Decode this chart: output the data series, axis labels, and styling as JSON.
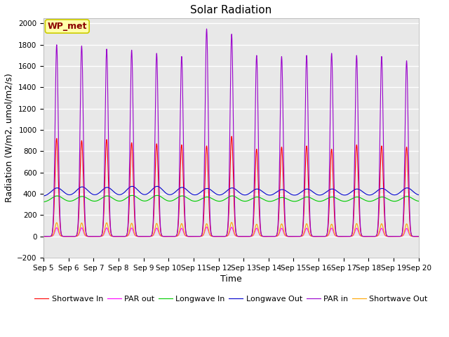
{
  "title": "Solar Radiation",
  "xlabel": "Time",
  "ylabel": "Radiation (W/m2, umol/m2/s)",
  "ylim": [
    -200,
    2050
  ],
  "yticks": [
    -200,
    0,
    200,
    400,
    600,
    800,
    1000,
    1200,
    1400,
    1600,
    1800,
    2000
  ],
  "xlim": [
    5,
    20
  ],
  "n_days": 16,
  "start_day": 5,
  "dt_hours": 0.1,
  "series": {
    "shortwave_in": {
      "color": "#FF0000",
      "label": "Shortwave In"
    },
    "shortwave_out": {
      "color": "#FFA500",
      "label": "Shortwave Out"
    },
    "longwave_in": {
      "color": "#00CC00",
      "label": "Longwave In"
    },
    "longwave_out": {
      "color": "#0000CC",
      "label": "Longwave Out"
    },
    "par_in": {
      "color": "#9900CC",
      "label": "PAR in"
    },
    "par_out": {
      "color": "#FF00FF",
      "label": "PAR out"
    }
  },
  "annotation": "WP_met",
  "bg_color": "#E8E8E8",
  "grid_color": "#FFFFFF",
  "title_fontsize": 11,
  "axis_label_fontsize": 9,
  "tick_fontsize": 7.5,
  "legend_fontsize": 8,
  "linewidth": 0.8,
  "xtick_labels": [
    "Sep 5",
    "Sep 6",
    "Sep 7",
    "Sep 8",
    "Sep 9",
    "Sep 10",
    "Sep 11",
    "Sep 12",
    "Sep 13",
    "Sep 14",
    "Sep 15",
    "Sep 16",
    "Sep 17",
    "Sep 18",
    "Sep 19",
    "Sep 20"
  ]
}
